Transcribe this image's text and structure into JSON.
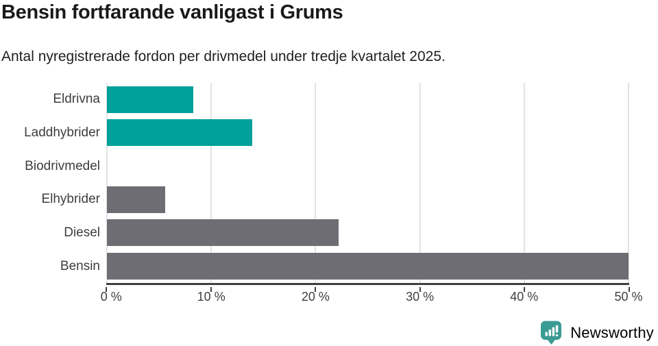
{
  "header": {
    "title": "Bensin fortfarande vanligast i Grums",
    "subtitle": "Antal nyregistrerade fordon per drivmedel under tredje kvartalet 2025."
  },
  "chart_data": {
    "type": "bar",
    "orientation": "horizontal",
    "title": "Bensin fortfarande vanligast i Grums",
    "subtitle": "Antal nyregistrerade fordon per drivmedel under tredje kvartalet 2025.",
    "categories": [
      "Eldrivna",
      "Laddhybrider",
      "Biodrivmedel",
      "Elhybrider",
      "Diesel",
      "Bensin"
    ],
    "values": [
      8.3,
      13.9,
      0,
      5.6,
      22.2,
      50.0
    ],
    "unit": "%",
    "bar_colors": [
      "#00a19a",
      "#00a19a",
      "#6d6d73",
      "#6d6d73",
      "#6d6d73",
      "#6d6d73"
    ],
    "xlabel": "",
    "ylabel": "",
    "xlim": [
      0,
      50
    ],
    "xticks": [
      0,
      10,
      20,
      30,
      40,
      50
    ],
    "xtick_labels": [
      "0 %",
      "10 %",
      "20 %",
      "30 %",
      "40 %",
      "50 %"
    ],
    "grid": "vertical-only",
    "legend": "none"
  },
  "colors": {
    "teal": "#00a19a",
    "gray": "#6d6d73",
    "gridline": "#e3e3e3",
    "axis": "#3f3f3f",
    "text": "#3d3d3d",
    "logo_teal": "#3a9b94"
  },
  "footer": {
    "brand": "Newsworthy"
  }
}
